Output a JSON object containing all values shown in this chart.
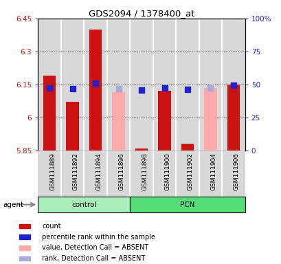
{
  "title": "GDS2094 / 1378400_at",
  "samples": [
    "GSM111889",
    "GSM111892",
    "GSM111894",
    "GSM111896",
    "GSM111898",
    "GSM111900",
    "GSM111902",
    "GSM111904",
    "GSM111906"
  ],
  "groups": [
    "control",
    "control",
    "control",
    "control",
    "PCN",
    "PCN",
    "PCN",
    "PCN",
    "PCN"
  ],
  "ylim_left": [
    5.85,
    6.45
  ],
  "ylim_right": [
    0,
    100
  ],
  "yticks_left": [
    5.85,
    6.0,
    6.15,
    6.3,
    6.45
  ],
  "yticks_right": [
    0,
    25,
    50,
    75,
    100
  ],
  "ytick_labels_left": [
    "5.85",
    "6",
    "6.15",
    "6.3",
    "6.45"
  ],
  "ytick_labels_right": [
    "0",
    "25",
    "50",
    "75",
    "100%"
  ],
  "red_bars": [
    6.19,
    6.07,
    6.4,
    null,
    5.86,
    6.12,
    5.88,
    null,
    6.15
  ],
  "blue_dots": [
    6.135,
    6.13,
    6.155,
    null,
    6.126,
    6.135,
    6.128,
    null,
    6.145
  ],
  "pink_bars": [
    null,
    null,
    null,
    6.115,
    null,
    null,
    null,
    6.135,
    null
  ],
  "lavender_dots": [
    null,
    null,
    null,
    6.13,
    null,
    null,
    null,
    6.135,
    null
  ],
  "red_bar_color": "#cc1111",
  "blue_dot_color": "#2222cc",
  "pink_bar_color": "#ffaaaa",
  "lavender_dot_color": "#aaaadd",
  "bg_plot": "#ffffff",
  "col_bg": "#d8d8d8",
  "bg_control": "#aaeebb",
  "bg_pcn": "#55dd77",
  "left_axis_color": "#cc1111",
  "right_axis_color": "#2222cc",
  "bar_width": 0.55,
  "dot_size": 30,
  "bar_bottom": 5.85
}
